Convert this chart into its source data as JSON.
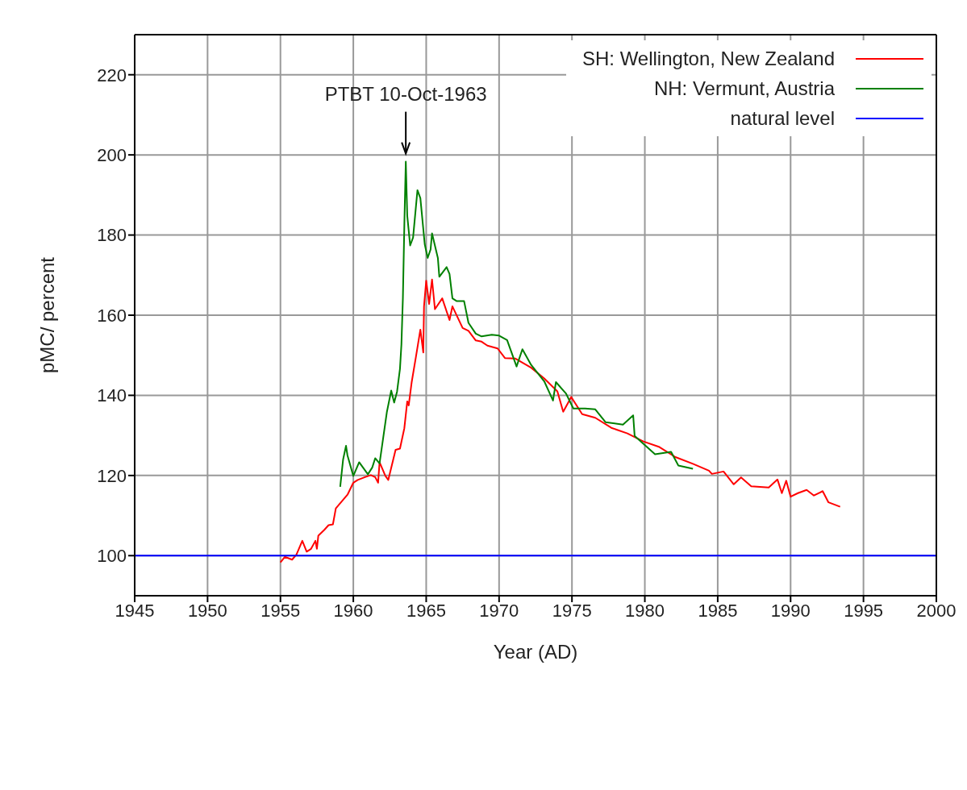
{
  "chart_data": {
    "type": "line",
    "xlabel": "Year (AD)",
    "ylabel": "pMC/ percent",
    "xlim": [
      1945,
      2000
    ],
    "xticks": [
      1945,
      1950,
      1955,
      1960,
      1965,
      1970,
      1975,
      1980,
      1985,
      1990,
      1995,
      2000
    ],
    "ylim": [
      90,
      230
    ],
    "yticks": [
      100,
      120,
      140,
      160,
      180,
      200,
      220
    ],
    "grid": true,
    "legend": "top right",
    "marker": "none",
    "line_style": "solid",
    "annotations": [
      {
        "text": "PTBT 10-Oct-1963",
        "x": 1963.6,
        "y": 198.3
      }
    ],
    "series": [
      {
        "name": "SH: Wellington, New Zealand",
        "color": "#ff0000",
        "x": [
          1955.0,
          1955.3,
          1955.8,
          1956.1,
          1956.5,
          1956.8,
          1957.1,
          1957.4,
          1957.5,
          1957.6,
          1958.0,
          1958.3,
          1958.6,
          1958.8,
          1959.2,
          1959.6,
          1960.0,
          1960.3,
          1960.8,
          1961.2,
          1961.5,
          1961.7,
          1961.8,
          1962.2,
          1962.4,
          1962.9,
          1963.2,
          1963.5,
          1963.7,
          1963.8,
          1964.0,
          1964.3,
          1964.6,
          1964.8,
          1964.85,
          1965.0,
          1965.2,
          1965.4,
          1965.6,
          1966.1,
          1966.6,
          1966.8,
          1967.5,
          1967.9,
          1968.4,
          1968.8,
          1969.2,
          1969.9,
          1970.4,
          1971.1,
          1972.2,
          1973.1,
          1974.0,
          1974.4,
          1974.95,
          1975.7,
          1976.6,
          1977.7,
          1978.8,
          1979.9,
          1981.0,
          1982.1,
          1983.3,
          1984.4,
          1984.6,
          1985.4,
          1986.1,
          1986.6,
          1987.3,
          1988.5,
          1989.1,
          1989.4,
          1989.7,
          1990.0,
          1990.5,
          1991.1,
          1991.6,
          1992.2,
          1992.6,
          1993.4
        ],
        "values": [
          98.3,
          99.7,
          99,
          100.3,
          103.7,
          101,
          101.7,
          103.7,
          101.7,
          105,
          106.4,
          107.6,
          107.8,
          111.8,
          113.5,
          115.2,
          118.2,
          118.9,
          119.6,
          120.1,
          119.6,
          118.2,
          123.3,
          119.9,
          118.9,
          126.4,
          126.7,
          131.8,
          138.5,
          137.5,
          143.2,
          149.7,
          156.4,
          150.7,
          162.2,
          168.6,
          162.8,
          168.9,
          161.5,
          164.2,
          158.8,
          162.2,
          156.8,
          156.1,
          153.7,
          153.4,
          152.4,
          151.7,
          149.3,
          149.2,
          146.9,
          144.2,
          141.0,
          135.9,
          139.6,
          135.3,
          134.4,
          131.9,
          130.5,
          128.5,
          127.1,
          124.6,
          122.9,
          121.2,
          120.4,
          121,
          117.8,
          119.5,
          117.3,
          117.0,
          119.0,
          115.6,
          118.7,
          114.7,
          115.6,
          116.4,
          115.0,
          116.1,
          113.3,
          112.2
        ]
      },
      {
        "name": "NH: Vermunt, Austria",
        "color": "#008000",
        "x": [
          1959.1,
          1959.3,
          1959.5,
          1959.6,
          1960.0,
          1960.4,
          1961.0,
          1961.3,
          1961.5,
          1961.8,
          1962.3,
          1962.6,
          1962.8,
          1963.0,
          1963.2,
          1963.3,
          1963.4,
          1963.5,
          1963.6,
          1963.7,
          1963.9,
          1964.1,
          1964.4,
          1964.6,
          1964.9,
          1965.1,
          1965.3,
          1965.4,
          1965.8,
          1965.9,
          1966.4,
          1966.6,
          1966.8,
          1967.1,
          1967.6,
          1967.9,
          1968.4,
          1968.8,
          1969.5,
          1970.0,
          1970.55,
          1971.2,
          1971.6,
          1972.2,
          1973.1,
          1973.7,
          1973.9,
          1974.6,
          1975.1,
          1975.9,
          1976.6,
          1977.3,
          1978.5,
          1979.2,
          1979.3,
          1979.9,
          1980.7,
          1981.8,
          1982.3,
          1983.3
        ],
        "values": [
          117.2,
          124.0,
          127.4,
          125,
          119.9,
          123.3,
          120.3,
          122,
          124.3,
          123,
          135.8,
          141.2,
          138.2,
          140.9,
          146.6,
          152.7,
          164.2,
          182.4,
          198.3,
          184.8,
          177.4,
          179.4,
          191.2,
          189.2,
          177.7,
          174.3,
          176.4,
          180.4,
          174.3,
          169.6,
          172,
          170.3,
          164.2,
          163.5,
          163.5,
          158.1,
          155.4,
          154.7,
          155.1,
          154.9,
          153.8,
          147.2,
          151.5,
          147.6,
          143.5,
          138.7,
          143.3,
          140.4,
          136.7,
          136.7,
          136.5,
          133.3,
          132.7,
          135.0,
          129.9,
          127.9,
          125.3,
          125.9,
          122.5,
          121.7
        ]
      },
      {
        "name": "natural level",
        "color": "#0000ff",
        "x": [
          1945,
          2000
        ],
        "values": [
          100,
          100
        ]
      }
    ]
  }
}
